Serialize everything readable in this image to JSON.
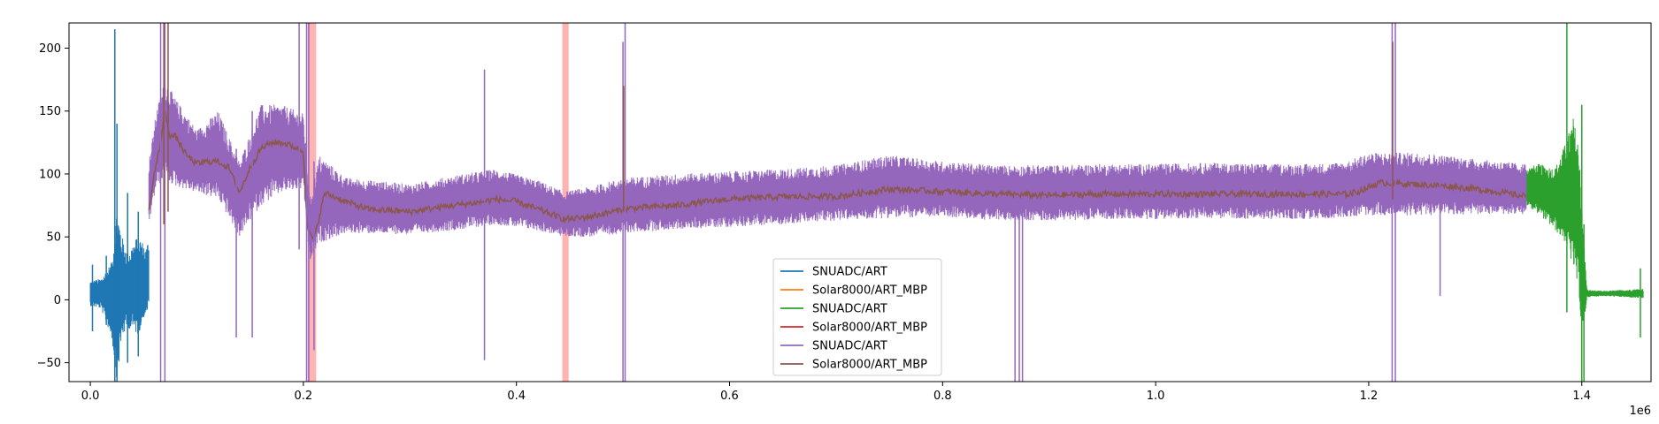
{
  "chart_data": {
    "type": "line",
    "title": "",
    "xlabel": "",
    "ylabel": "",
    "x_offset_label": "1e6",
    "xlim": [
      -20000,
      1465000
    ],
    "ylim": [
      -65,
      220
    ],
    "x_ticks": [
      0,
      200000,
      400000,
      600000,
      800000,
      1000000,
      1200000,
      1400000
    ],
    "x_tick_labels": [
      "0.0",
      "0.2",
      "0.4",
      "0.6",
      "0.8",
      "1.0",
      "1.2",
      "1.4"
    ],
    "y_ticks": [
      -50,
      0,
      50,
      100,
      150,
      200
    ],
    "y_tick_labels": [
      "−50",
      "0",
      "50",
      "100",
      "150",
      "200"
    ],
    "grid": false,
    "legend_position": "lower-center",
    "shaded_regions": [
      {
        "x0": 204000,
        "x1": 212000,
        "color": "#ff9999"
      },
      {
        "x0": 443000,
        "x1": 449000,
        "color": "#ff9999"
      }
    ],
    "series": [
      {
        "name": "SNUADC/ART",
        "color": "#1f77b4",
        "kind": "noise",
        "x": [
          0,
          10000,
          20000,
          25000,
          30000,
          35000,
          40000,
          45000,
          50000,
          52000,
          55000
        ],
        "y_center": [
          5,
          5,
          0,
          5,
          10,
          8,
          10,
          12,
          15,
          15,
          20
        ],
        "y_amp": [
          10,
          12,
          30,
          70,
          40,
          30,
          35,
          40,
          30,
          25,
          30
        ]
      },
      {
        "name": "Solar8000/ART_MBP",
        "color": "#ff7f0e",
        "kind": "line",
        "x": [],
        "y": []
      },
      {
        "name": "SNUADC/ART",
        "color": "#2ca02c",
        "kind": "noise",
        "x": [
          1348000,
          1360000,
          1375000,
          1385000,
          1392000,
          1398000,
          1400000,
          1405000,
          1420000,
          1440000,
          1458000
        ],
        "y_center": [
          90,
          88,
          80,
          85,
          85,
          60,
          20,
          5,
          5,
          5,
          5
        ],
        "y_amp": [
          15,
          20,
          25,
          40,
          60,
          60,
          55,
          3,
          2,
          3,
          4
        ]
      },
      {
        "name": "Solar8000/ART_MBP",
        "color": "#d62728",
        "kind": "line",
        "x": [],
        "y": []
      },
      {
        "name": "SNUADC/ART",
        "color": "#9467bd",
        "kind": "noise",
        "x": [
          55000,
          62000,
          70000,
          80000,
          100000,
          120000,
          140000,
          160000,
          180000,
          200000,
          206000,
          215000,
          240000,
          300000,
          350000,
          380000,
          420000,
          445000,
          470000,
          500000,
          550000,
          600000,
          650000,
          700000,
          750000,
          800000,
          850000,
          900000,
          950000,
          1000000,
          1050000,
          1100000,
          1150000,
          1180000,
          1200000,
          1250000,
          1300000,
          1348000
        ],
        "y_center": [
          85,
          120,
          135,
          125,
          110,
          115,
          80,
          115,
          120,
          118,
          55,
          80,
          75,
          72,
          78,
          82,
          75,
          68,
          70,
          75,
          78,
          80,
          82,
          85,
          90,
          88,
          85,
          85,
          86,
          86,
          87,
          86,
          86,
          88,
          92,
          92,
          90,
          88
        ],
        "y_amp": [
          25,
          30,
          40,
          35,
          25,
          35,
          30,
          40,
          35,
          30,
          25,
          35,
          22,
          20,
          22,
          22,
          20,
          18,
          20,
          22,
          22,
          22,
          22,
          22,
          25,
          22,
          22,
          22,
          22,
          22,
          22,
          22,
          22,
          22,
          25,
          25,
          22,
          20
        ]
      },
      {
        "name": "Solar8000/ART_MBP",
        "color": "#8c564b",
        "kind": "line",
        "x": [
          55000,
          60000,
          65000,
          70000,
          75000,
          80000,
          90000,
          100000,
          110000,
          120000,
          130000,
          140000,
          150000,
          160000,
          170000,
          180000,
          190000,
          200000,
          204000,
          210000,
          220000,
          240000,
          260000,
          300000,
          340000,
          370000,
          380000,
          400000,
          420000,
          445000,
          460000,
          480000,
          500000,
          510000,
          550000,
          600000,
          650000,
          700000,
          750000,
          800000,
          850000,
          900000,
          950000,
          1000000,
          1050000,
          1100000,
          1150000,
          1180000,
          1190000,
          1210000,
          1240000,
          1280000,
          1320000,
          1348000
        ],
        "y": [
          70,
          100,
          120,
          150,
          130,
          130,
          115,
          108,
          110,
          110,
          105,
          85,
          105,
          120,
          125,
          125,
          122,
          118,
          55,
          48,
          85,
          78,
          72,
          70,
          75,
          78,
          80,
          78,
          72,
          64,
          65,
          68,
          72,
          73,
          75,
          80,
          82,
          82,
          88,
          86,
          84,
          83,
          84,
          84,
          84,
          84,
          84,
          84,
          86,
          93,
          92,
          90,
          86,
          82
        ]
      }
    ],
    "spikes": [
      {
        "x": 2000,
        "y0": -25,
        "y1": 28,
        "color": "#1f77b4"
      },
      {
        "x": 15000,
        "y0": -20,
        "y1": 35,
        "color": "#1f77b4"
      },
      {
        "x": 23000,
        "y0": -65,
        "y1": 215,
        "color": "#1f77b4"
      },
      {
        "x": 25000,
        "y0": -65,
        "y1": 140,
        "color": "#1f77b4"
      },
      {
        "x": 35000,
        "y0": -50,
        "y1": 85,
        "color": "#1f77b4"
      },
      {
        "x": 45000,
        "y0": -45,
        "y1": 70,
        "color": "#1f77b4"
      },
      {
        "x": 66000,
        "y0": -65,
        "y1": 220,
        "color": "#9467bd"
      },
      {
        "x": 70000,
        "y0": -65,
        "y1": 220,
        "color": "#9467bd"
      },
      {
        "x": 137000,
        "y0": -30,
        "y1": 120,
        "color": "#9467bd"
      },
      {
        "x": 152000,
        "y0": -30,
        "y1": 150,
        "color": "#9467bd"
      },
      {
        "x": 196000,
        "y0": 40,
        "y1": 220,
        "color": "#9467bd"
      },
      {
        "x": 203000,
        "y0": -65,
        "y1": 220,
        "color": "#9467bd"
      },
      {
        "x": 205000,
        "y0": -65,
        "y1": 220,
        "color": "#9467bd"
      },
      {
        "x": 210000,
        "y0": -40,
        "y1": 110,
        "color": "#9467bd"
      },
      {
        "x": 370000,
        "y0": -48,
        "y1": 183,
        "color": "#9467bd"
      },
      {
        "x": 500000,
        "y0": -65,
        "y1": 205,
        "color": "#9467bd"
      },
      {
        "x": 502000,
        "y0": -65,
        "y1": 220,
        "color": "#9467bd"
      },
      {
        "x": 868000,
        "y0": -65,
        "y1": 70,
        "color": "#9467bd"
      },
      {
        "x": 872000,
        "y0": -65,
        "y1": 70,
        "color": "#9467bd"
      },
      {
        "x": 875000,
        "y0": -65,
        "y1": 70,
        "color": "#9467bd"
      },
      {
        "x": 1222000,
        "y0": -65,
        "y1": 220,
        "color": "#9467bd"
      },
      {
        "x": 1225000,
        "y0": -65,
        "y1": 220,
        "color": "#9467bd"
      },
      {
        "x": 1267000,
        "y0": 3,
        "y1": 95,
        "color": "#9467bd"
      },
      {
        "x": 1386000,
        "y0": -10,
        "y1": 220,
        "color": "#2ca02c"
      },
      {
        "x": 1400000,
        "y0": -65,
        "y1": 155,
        "color": "#2ca02c"
      },
      {
        "x": 1402000,
        "y0": -65,
        "y1": 60,
        "color": "#2ca02c"
      },
      {
        "x": 1455000,
        "y0": -30,
        "y1": 25,
        "color": "#2ca02c"
      },
      {
        "x": 69000,
        "y0": 60,
        "y1": 220,
        "color": "#8c564b"
      },
      {
        "x": 73000,
        "y0": 70,
        "y1": 220,
        "color": "#8c564b"
      },
      {
        "x": 500500,
        "y0": 70,
        "y1": 170,
        "color": "#8c564b"
      },
      {
        "x": 1222500,
        "y0": 80,
        "y1": 205,
        "color": "#8c564b"
      }
    ],
    "legend": [
      {
        "label": "SNUADC/ART",
        "color": "#1f77b4"
      },
      {
        "label": "Solar8000/ART_MBP",
        "color": "#ff7f0e"
      },
      {
        "label": "SNUADC/ART",
        "color": "#2ca02c"
      },
      {
        "label": "Solar8000/ART_MBP",
        "color": "#d62728"
      },
      {
        "label": "SNUADC/ART",
        "color": "#9467bd"
      },
      {
        "label": "Solar8000/ART_MBP",
        "color": "#8c564b"
      }
    ]
  }
}
